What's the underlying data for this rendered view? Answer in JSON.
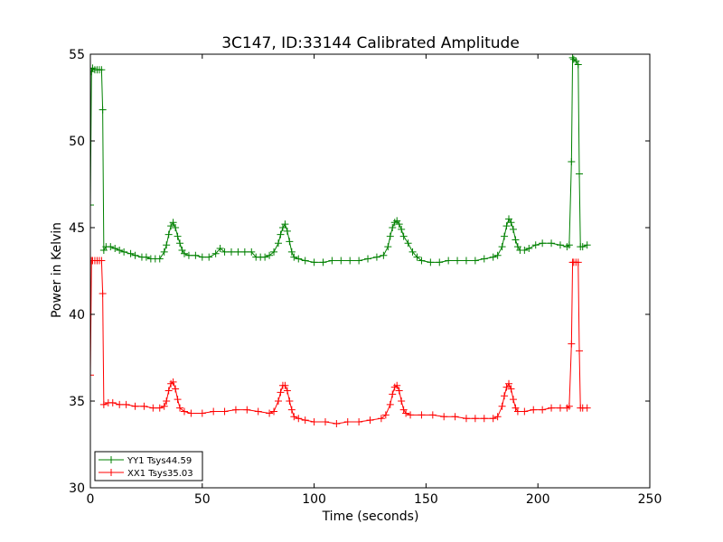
{
  "chart_data": {
    "type": "line",
    "title": "3C147, ID:33144 Calibrated Amplitude",
    "xlabel": "Time (seconds)",
    "ylabel": "Power in Kelvin",
    "xlim": [
      0,
      250
    ],
    "ylim": [
      30,
      55
    ],
    "xticks": [
      0,
      50,
      100,
      150,
      200,
      250
    ],
    "yticks": [
      30,
      35,
      40,
      45,
      50,
      55
    ],
    "grid": false,
    "legend_position": "bottom-left",
    "series": [
      {
        "name": "YY1 Tsys44.59",
        "color": "#008000",
        "marker": "+",
        "points": [
          [
            0,
            46.3
          ],
          [
            0.5,
            54
          ],
          [
            1,
            54.2
          ],
          [
            2,
            54.1
          ],
          [
            3,
            54.1
          ],
          [
            4,
            54.1
          ],
          [
            5,
            54.1
          ],
          [
            5.5,
            51.8
          ],
          [
            6,
            43.7
          ],
          [
            7,
            43.9
          ],
          [
            9,
            43.9
          ],
          [
            11,
            43.8
          ],
          [
            13,
            43.7
          ],
          [
            15,
            43.6
          ],
          [
            18,
            43.5
          ],
          [
            20,
            43.4
          ],
          [
            23,
            43.3
          ],
          [
            25,
            43.3
          ],
          [
            27,
            43.2
          ],
          [
            29,
            43.2
          ],
          [
            31,
            43.2
          ],
          [
            33,
            43.6
          ],
          [
            34,
            44.0
          ],
          [
            35,
            44.6
          ],
          [
            36,
            45.1
          ],
          [
            37,
            45.3
          ],
          [
            38,
            45.0
          ],
          [
            39,
            44.5
          ],
          [
            40,
            44.1
          ],
          [
            41,
            43.7
          ],
          [
            42,
            43.5
          ],
          [
            44,
            43.4
          ],
          [
            47,
            43.4
          ],
          [
            50,
            43.3
          ],
          [
            53,
            43.3
          ],
          [
            56,
            43.5
          ],
          [
            58,
            43.8
          ],
          [
            60,
            43.6
          ],
          [
            63,
            43.6
          ],
          [
            66,
            43.6
          ],
          [
            69,
            43.6
          ],
          [
            72,
            43.6
          ],
          [
            74,
            43.3
          ],
          [
            76,
            43.3
          ],
          [
            78,
            43.3
          ],
          [
            80,
            43.4
          ],
          [
            82,
            43.6
          ],
          [
            84,
            44.1
          ],
          [
            85,
            44.6
          ],
          [
            86,
            45.0
          ],
          [
            87,
            45.2
          ],
          [
            88,
            44.8
          ],
          [
            89,
            44.2
          ],
          [
            90,
            43.6
          ],
          [
            91,
            43.3
          ],
          [
            93,
            43.2
          ],
          [
            96,
            43.1
          ],
          [
            100,
            43.0
          ],
          [
            104,
            43.0
          ],
          [
            108,
            43.1
          ],
          [
            112,
            43.1
          ],
          [
            116,
            43.1
          ],
          [
            120,
            43.1
          ],
          [
            124,
            43.2
          ],
          [
            128,
            43.3
          ],
          [
            131,
            43.4
          ],
          [
            133,
            43.9
          ],
          [
            134,
            44.5
          ],
          [
            135,
            45.0
          ],
          [
            136,
            45.3
          ],
          [
            137,
            45.4
          ],
          [
            138,
            45.2
          ],
          [
            139,
            44.9
          ],
          [
            140,
            44.5
          ],
          [
            142,
            44.1
          ],
          [
            144,
            43.6
          ],
          [
            146,
            43.3
          ],
          [
            148,
            43.1
          ],
          [
            152,
            43.0
          ],
          [
            156,
            43.0
          ],
          [
            160,
            43.1
          ],
          [
            164,
            43.1
          ],
          [
            168,
            43.1
          ],
          [
            172,
            43.1
          ],
          [
            176,
            43.2
          ],
          [
            180,
            43.3
          ],
          [
            182,
            43.4
          ],
          [
            184,
            43.9
          ],
          [
            185,
            44.5
          ],
          [
            186,
            45.1
          ],
          [
            187,
            45.5
          ],
          [
            188,
            45.3
          ],
          [
            189,
            44.9
          ],
          [
            190,
            44.3
          ],
          [
            191,
            43.9
          ],
          [
            192,
            43.7
          ],
          [
            194,
            43.7
          ],
          [
            196,
            43.8
          ],
          [
            199,
            44.0
          ],
          [
            202,
            44.1
          ],
          [
            206,
            44.1
          ],
          [
            210,
            44.0
          ],
          [
            213,
            43.9
          ],
          [
            214,
            44.0
          ],
          [
            215,
            48.8
          ],
          [
            215.5,
            54.8
          ],
          [
            216,
            54.7
          ],
          [
            217,
            54.6
          ],
          [
            218,
            54.4
          ],
          [
            218.5,
            48.1
          ],
          [
            219,
            43.9
          ],
          [
            220,
            43.9
          ],
          [
            222,
            44.0
          ]
        ]
      },
      {
        "name": "XX1 Tsys35.03",
        "color": "#ff0000",
        "marker": "+",
        "points": [
          [
            0,
            36.5
          ],
          [
            0.5,
            43.1
          ],
          [
            1,
            43.1
          ],
          [
            2,
            43.1
          ],
          [
            3,
            43.1
          ],
          [
            4,
            43.1
          ],
          [
            5,
            43.1
          ],
          [
            5.5,
            41.2
          ],
          [
            6,
            34.8
          ],
          [
            8,
            34.9
          ],
          [
            10,
            34.9
          ],
          [
            13,
            34.8
          ],
          [
            16,
            34.8
          ],
          [
            20,
            34.7
          ],
          [
            24,
            34.7
          ],
          [
            28,
            34.6
          ],
          [
            31,
            34.6
          ],
          [
            33,
            34.7
          ],
          [
            34,
            35.0
          ],
          [
            35,
            35.6
          ],
          [
            36,
            36.0
          ],
          [
            37,
            36.1
          ],
          [
            38,
            35.7
          ],
          [
            39,
            35.1
          ],
          [
            40,
            34.6
          ],
          [
            42,
            34.4
          ],
          [
            45,
            34.3
          ],
          [
            50,
            34.3
          ],
          [
            55,
            34.4
          ],
          [
            60,
            34.4
          ],
          [
            65,
            34.5
          ],
          [
            70,
            34.5
          ],
          [
            75,
            34.4
          ],
          [
            80,
            34.3
          ],
          [
            82,
            34.4
          ],
          [
            84,
            35.0
          ],
          [
            85,
            35.5
          ],
          [
            86,
            35.9
          ],
          [
            87,
            35.9
          ],
          [
            88,
            35.6
          ],
          [
            89,
            35.0
          ],
          [
            90,
            34.5
          ],
          [
            91,
            34.1
          ],
          [
            93,
            34.0
          ],
          [
            96,
            33.9
          ],
          [
            100,
            33.8
          ],
          [
            105,
            33.8
          ],
          [
            110,
            33.7
          ],
          [
            115,
            33.8
          ],
          [
            120,
            33.8
          ],
          [
            125,
            33.9
          ],
          [
            130,
            34.0
          ],
          [
            132,
            34.2
          ],
          [
            134,
            34.8
          ],
          [
            135,
            35.4
          ],
          [
            136,
            35.8
          ],
          [
            137,
            35.9
          ],
          [
            138,
            35.6
          ],
          [
            139,
            35.0
          ],
          [
            140,
            34.5
          ],
          [
            141,
            34.3
          ],
          [
            143,
            34.2
          ],
          [
            148,
            34.2
          ],
          [
            153,
            34.2
          ],
          [
            158,
            34.1
          ],
          [
            163,
            34.1
          ],
          [
            168,
            34.0
          ],
          [
            172,
            34.0
          ],
          [
            176,
            34.0
          ],
          [
            180,
            34.0
          ],
          [
            182,
            34.1
          ],
          [
            184,
            34.7
          ],
          [
            185,
            35.3
          ],
          [
            186,
            35.8
          ],
          [
            187,
            36.0
          ],
          [
            188,
            35.7
          ],
          [
            189,
            35.1
          ],
          [
            190,
            34.6
          ],
          [
            191,
            34.4
          ],
          [
            194,
            34.4
          ],
          [
            198,
            34.5
          ],
          [
            202,
            34.5
          ],
          [
            206,
            34.6
          ],
          [
            210,
            34.6
          ],
          [
            213,
            34.6
          ],
          [
            214,
            34.7
          ],
          [
            215,
            38.3
          ],
          [
            215.5,
            43.0
          ],
          [
            216,
            43.0
          ],
          [
            217,
            43.0
          ],
          [
            218,
            43.0
          ],
          [
            218.5,
            37.9
          ],
          [
            219,
            34.6
          ],
          [
            220,
            34.6
          ],
          [
            222,
            34.6
          ]
        ]
      }
    ]
  }
}
